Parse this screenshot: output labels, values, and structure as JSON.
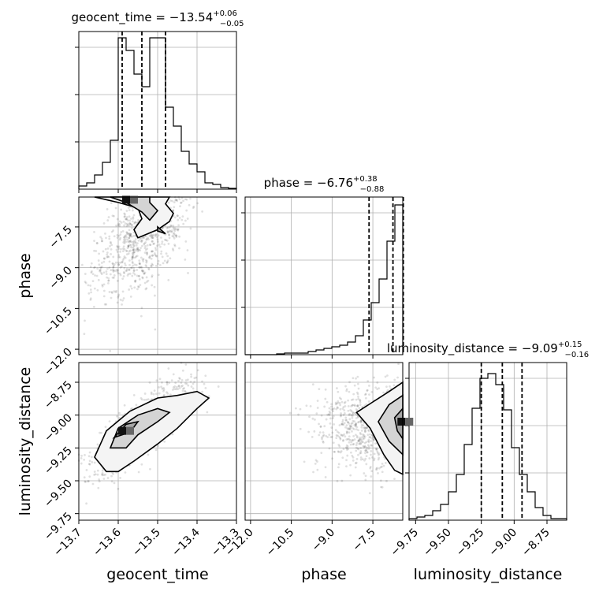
{
  "chart_data": {
    "type": "corner",
    "parameters": [
      {
        "name": "geocent_time",
        "xlabel": "geocent_time",
        "title_prefix": "geocent_time = −13.54",
        "title_sup": "+0.06",
        "title_sub": "−0.05",
        "range": [
          -13.7,
          -13.3
        ],
        "ticks": [
          "−13.7",
          "−13.6",
          "−13.5",
          "−13.4",
          "−13.3"
        ],
        "tick_values": [
          -13.7,
          -13.6,
          -13.5,
          -13.4,
          -13.3
        ],
        "quantiles": [
          -13.59,
          -13.54,
          -13.48
        ],
        "histogram": [
          0.02,
          0.04,
          0.09,
          0.17,
          0.31,
          0.96,
          0.88,
          0.73,
          0.65,
          0.96,
          0.96,
          0.52,
          0.4,
          0.24,
          0.16,
          0.11,
          0.04,
          0.03,
          0.01,
          0.005
        ]
      },
      {
        "name": "phase",
        "xlabel": "phase",
        "ylabel": "phase",
        "title_prefix": "phase = −6.76",
        "title_sup": "+0.38",
        "title_sub": "−0.88",
        "range": [
          -12.2,
          -6.4
        ],
        "ticks": [
          "−12.0",
          "−10.5",
          "−9.0",
          "−7.5"
        ],
        "tick_values": [
          -12.0,
          -10.5,
          -9.0,
          -7.5
        ],
        "quantiles": [
          -7.64,
          -6.76,
          -6.38
        ],
        "histogram": [
          0.0,
          0.0,
          0.0,
          0.0,
          0.005,
          0.01,
          0.01,
          0.01,
          0.02,
          0.03,
          0.04,
          0.05,
          0.06,
          0.08,
          0.12,
          0.22,
          0.33,
          0.48,
          0.72,
          0.95
        ]
      },
      {
        "name": "luminosity_distance",
        "xlabel": "luminosity_distance",
        "ylabel": "luminosity_distance",
        "title_prefix": "luminosity_distance = −9.09",
        "title_sup": "+0.15",
        "title_sub": "−0.16",
        "range": [
          -9.8,
          -8.6
        ],
        "ticks": [
          "−9.75",
          "−9.50",
          "−9.25",
          "−9.00",
          "−8.75"
        ],
        "tick_values": [
          -9.75,
          -9.5,
          -9.25,
          -9.0,
          -8.75
        ],
        "quantiles": [
          -9.25,
          -9.09,
          -8.94
        ],
        "histogram": [
          0.01,
          0.02,
          0.03,
          0.06,
          0.1,
          0.18,
          0.29,
          0.48,
          0.71,
          0.9,
          0.93,
          0.86,
          0.7,
          0.46,
          0.29,
          0.18,
          0.08,
          0.03,
          0.01,
          0.01
        ]
      }
    ],
    "pairs": [
      {
        "x": 0,
        "y": 1,
        "contours": [
          [
            [
              -13.66,
              -6.4
            ],
            [
              -13.6,
              -6.6
            ],
            [
              -13.55,
              -6.8
            ],
            [
              -13.54,
              -7.2
            ],
            [
              -13.56,
              -7.6
            ],
            [
              -13.55,
              -7.9
            ],
            [
              -13.5,
              -7.6
            ],
            [
              -13.47,
              -7.3
            ],
            [
              -13.46,
              -7.0
            ],
            [
              -13.48,
              -6.65
            ],
            [
              -13.47,
              -6.4
            ]
          ],
          [
            [
              -13.62,
              -6.4
            ],
            [
              -13.58,
              -6.6
            ],
            [
              -13.54,
              -6.95
            ],
            [
              -13.52,
              -7.25
            ],
            [
              -13.5,
              -6.9
            ],
            [
              -13.52,
              -6.6
            ],
            [
              -13.52,
              -6.4
            ]
          ],
          [
            [
              -13.5,
              -7.65
            ],
            [
              -13.48,
              -7.75
            ],
            [
              -13.5,
              -7.5
            ]
          ]
        ],
        "peak": [
          -13.58,
          -6.5
        ],
        "cloud": {
          "cx": -13.54,
          "cy": -7.8,
          "sx": 0.06,
          "sy": 1.2,
          "rho": 0.55
        }
      },
      {
        "x": 0,
        "y": 2,
        "contours": [
          [
            [
              -13.63,
              -9.43
            ],
            [
              -13.66,
              -9.32
            ],
            [
              -13.63,
              -9.12
            ],
            [
              -13.57,
              -8.97
            ],
            [
              -13.5,
              -8.87
            ],
            [
              -13.45,
              -8.85
            ],
            [
              -13.4,
              -8.82
            ],
            [
              -13.37,
              -8.87
            ],
            [
              -13.4,
              -8.95
            ],
            [
              -13.45,
              -9.1
            ],
            [
              -13.5,
              -9.22
            ],
            [
              -13.56,
              -9.35
            ],
            [
              -13.6,
              -9.43
            ]
          ],
          [
            [
              -13.62,
              -9.25
            ],
            [
              -13.6,
              -9.1
            ],
            [
              -13.55,
              -9.0
            ],
            [
              -13.5,
              -8.95
            ],
            [
              -13.47,
              -8.98
            ],
            [
              -13.5,
              -9.05
            ],
            [
              -13.55,
              -9.15
            ],
            [
              -13.58,
              -9.25
            ]
          ],
          [
            [
              -13.61,
              -9.17
            ],
            [
              -13.58,
              -9.07
            ],
            [
              -13.55,
              -9.05
            ],
            [
              -13.57,
              -9.13
            ]
          ]
        ],
        "peak": [
          -13.59,
          -9.12
        ],
        "cloud": {
          "cx": -13.54,
          "cy": -9.09,
          "sx": 0.065,
          "sy": 0.18,
          "rho": 0.8
        }
      },
      {
        "x": 1,
        "y": 2,
        "contours": [
          [
            [
              -6.4,
              -8.75
            ],
            [
              -6.9,
              -8.82
            ],
            [
              -7.5,
              -8.9
            ],
            [
              -8.1,
              -8.98
            ],
            [
              -7.6,
              -9.1
            ],
            [
              -7.1,
              -9.3
            ],
            [
              -6.7,
              -9.42
            ],
            [
              -6.4,
              -9.45
            ]
          ],
          [
            [
              -6.4,
              -8.85
            ],
            [
              -6.9,
              -8.92
            ],
            [
              -7.3,
              -9.05
            ],
            [
              -6.9,
              -9.2
            ],
            [
              -6.4,
              -9.3
            ]
          ],
          [
            [
              -6.4,
              -8.95
            ],
            [
              -6.7,
              -9.02
            ],
            [
              -6.6,
              -9.12
            ],
            [
              -6.4,
              -9.18
            ]
          ]
        ],
        "peak": [
          -6.45,
          -9.05
        ],
        "cloud": {
          "cx": -7.4,
          "cy": -9.09,
          "sx": 1.1,
          "sy": 0.17,
          "rho": 0.0
        }
      }
    ],
    "quantile_style": "dashed",
    "grid": true
  }
}
